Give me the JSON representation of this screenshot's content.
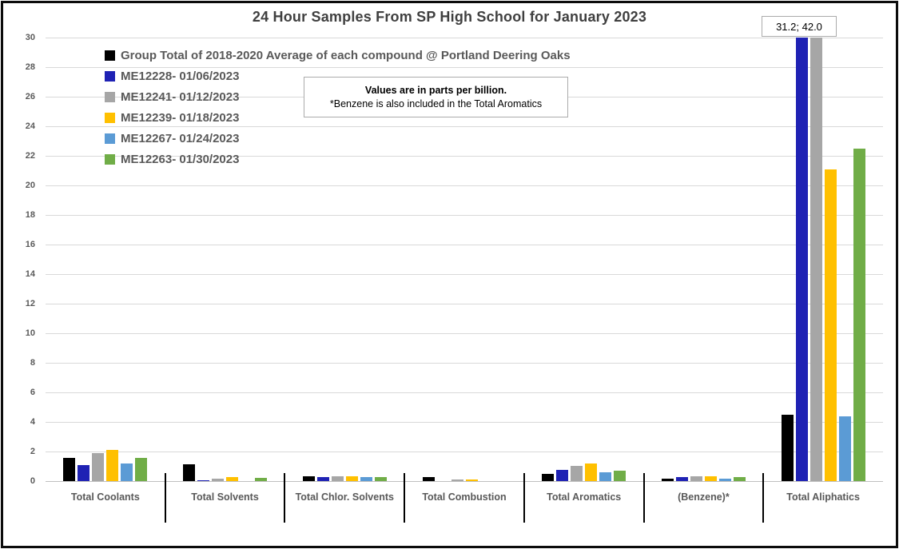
{
  "title": "24 Hour Samples From SP High School for January 2023",
  "note_box": {
    "line1": "Values are in parts per billion.",
    "line2": "*Benzene is also included in the Total Aromatics"
  },
  "annotation": {
    "text": "31.2; 42.0"
  },
  "chart_data": {
    "type": "bar",
    "title": "24 Hour Samples From SP High School for January 2023",
    "unit": "parts per billion",
    "categories": [
      "Total Coolants",
      "Total Solvents",
      "Total Chlor. Solvents",
      "Total Combustion",
      "Total Aromatics",
      "(Benzene)*",
      "Total Aliphatics"
    ],
    "series": [
      {
        "name": "Group Total of 2018-2020 Average of each compound @ Portland Deering Oaks",
        "color": "#000000",
        "values": [
          1.55,
          1.15,
          0.35,
          0.25,
          0.5,
          0.15,
          4.5
        ]
      },
      {
        "name": "ME12228- 01/06/2023",
        "color": "#1f22b4",
        "values": [
          1.1,
          0.05,
          0.25,
          0,
          0.75,
          0.25,
          31.2
        ]
      },
      {
        "name": "ME12241- 01/12/2023",
        "color": "#a6a6a6",
        "values": [
          1.9,
          0.15,
          0.3,
          0.1,
          1.05,
          0.35,
          42.0
        ]
      },
      {
        "name": "ME12239- 01/18/2023",
        "color": "#ffc000",
        "values": [
          2.1,
          0.25,
          0.35,
          0.1,
          1.2,
          0.3,
          21.1
        ]
      },
      {
        "name": "ME12267- 01/24/2023",
        "color": "#5b9bd5",
        "values": [
          1.2,
          0,
          0.25,
          0,
          0.6,
          0.15,
          4.4
        ]
      },
      {
        "name": "ME12263- 01/30/2023",
        "color": "#70ad47",
        "values": [
          1.55,
          0.2,
          0.25,
          0,
          0.7,
          0.25,
          22.5
        ]
      }
    ],
    "ylim": [
      0,
      30
    ],
    "ytick_step": 2,
    "grid": true,
    "legend_position": "top-left",
    "clip_annotation": "Bars over 30 are clipped; label shows true values 31.2 and 42.0 for Total Aliphatics"
  }
}
